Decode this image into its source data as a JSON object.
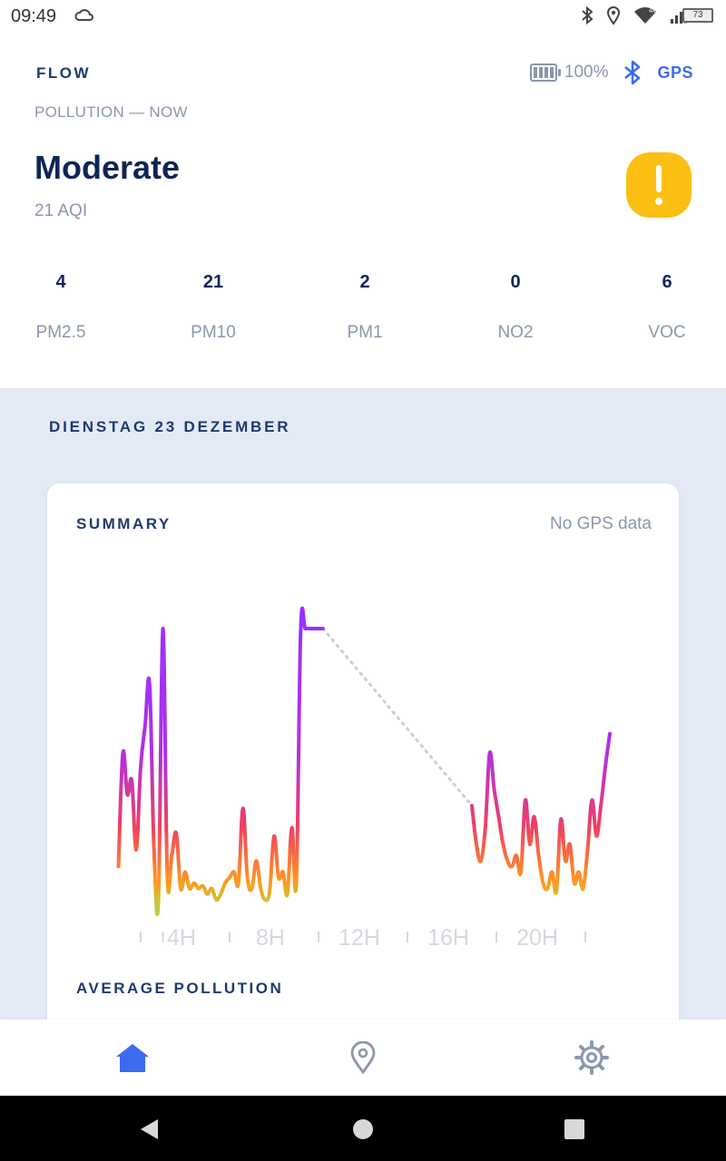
{
  "status_bar": {
    "time": "09:49",
    "battery_level": "73",
    "icons": [
      "weather-cloud-icon",
      "bluetooth-icon",
      "location-icon",
      "wifi-icon",
      "signal-icon",
      "battery-icon"
    ],
    "network_label": "4G"
  },
  "header": {
    "brand": "FLOW",
    "battery_percent": "100%",
    "gps_label": "GPS",
    "icons": [
      "device-battery-icon",
      "bluetooth-icon"
    ]
  },
  "pollution": {
    "section_label": "POLLUTION — NOW",
    "level": "Moderate",
    "aqi": "21 AQI",
    "alert_icon": "exclamation-alert-icon",
    "alert_color": "#fcc014",
    "metrics": [
      {
        "value": "4",
        "label": "PM2.5"
      },
      {
        "value": "21",
        "label": "PM10"
      },
      {
        "value": "2",
        "label": "PM1"
      },
      {
        "value": "0",
        "label": "NO2"
      },
      {
        "value": "6",
        "label": "VOC"
      }
    ]
  },
  "day": {
    "date_label": "DIENSTAG 23 DEZEMBER"
  },
  "summary_card": {
    "title": "SUMMARY",
    "gps_status": "No GPS data",
    "average_title": "AVERAGE POLLUTION"
  },
  "chart_data": {
    "type": "line",
    "title": "",
    "xlabel": "",
    "ylabel": "",
    "x_unit": "hour",
    "xlim": [
      0,
      24
    ],
    "ylim": [
      0,
      100
    ],
    "x_ticks": [
      "4H",
      "8H",
      "12H",
      "16H",
      "20H"
    ],
    "x_tick_values": [
      4,
      8,
      12,
      16,
      20
    ],
    "grid": false,
    "legend": "none",
    "gradient_colors": [
      "#c0cc3a",
      "#ff9a1f",
      "#ef3f63",
      "#b030e6",
      "#9b30ff"
    ],
    "gap": {
      "from_hour": 10.2,
      "to_hour": 16.9,
      "style": "dotted"
    },
    "series": [
      {
        "x": [
          1.0,
          1.2,
          1.4,
          1.6,
          1.8,
          2.0,
          2.2,
          2.4,
          2.6,
          2.8,
          3.0,
          3.2,
          3.4,
          3.6,
          3.8,
          4.0,
          4.2,
          4.4,
          4.6,
          4.8,
          5.0,
          5.2,
          5.4,
          5.6,
          5.8,
          6.0,
          6.2,
          6.4,
          6.6,
          6.8,
          7.0,
          7.2,
          7.4,
          7.6,
          7.8,
          8.0,
          8.2,
          8.4,
          8.6,
          8.8,
          9.0,
          9.2,
          9.4,
          9.6,
          9.8,
          10.0,
          10.2
        ],
        "y": [
          14,
          55,
          40,
          45,
          20,
          50,
          65,
          80,
          20,
          2,
          100,
          10,
          18,
          26,
          6,
          12,
          6,
          8,
          6,
          7,
          4,
          6,
          2,
          4,
          8,
          10,
          12,
          8,
          35,
          10,
          6,
          16,
          6,
          2,
          5,
          25,
          10,
          12,
          4,
          28,
          8,
          100,
          100,
          100,
          100,
          100,
          100
        ]
      },
      {
        "x": [
          16.9,
          17.1,
          17.3,
          17.5,
          17.7,
          17.9,
          18.1,
          18.3,
          18.5,
          18.7,
          18.9,
          19.1,
          19.3,
          19.5,
          19.7,
          19.9,
          20.1,
          20.3,
          20.5,
          20.7,
          20.9,
          21.1,
          21.3,
          21.5,
          21.7,
          21.9,
          22.1,
          22.3,
          22.5,
          22.7,
          22.9,
          23.1
        ],
        "y": [
          36,
          22,
          16,
          28,
          55,
          42,
          32,
          22,
          16,
          14,
          18,
          12,
          38,
          22,
          32,
          18,
          8,
          6,
          12,
          5,
          31,
          16,
          22,
          8,
          12,
          6,
          20,
          38,
          25,
          36,
          50,
          62
        ]
      }
    ]
  },
  "bottom_nav": {
    "items": [
      {
        "name": "home",
        "icon": "home-icon",
        "active": true
      },
      {
        "name": "map",
        "icon": "map-pin-icon",
        "active": false
      },
      {
        "name": "settings",
        "icon": "gear-icon",
        "active": false
      }
    ],
    "active_color": "#3d6bf0",
    "inactive_color": "#8a97ad"
  },
  "system_nav": {
    "icons": [
      "back-icon",
      "home-circle-icon",
      "recents-icon"
    ]
  }
}
